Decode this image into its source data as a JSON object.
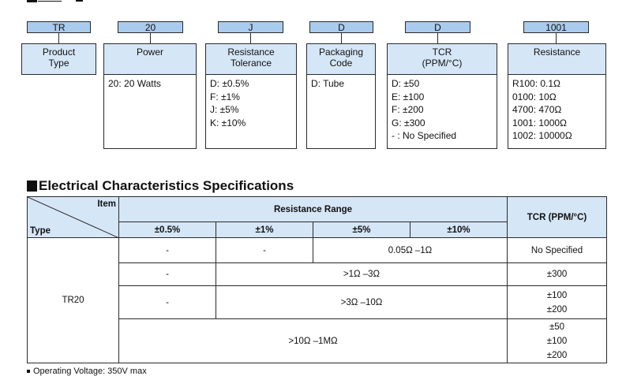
{
  "part_number": {
    "codes": [
      "TR",
      "20",
      "J",
      "D",
      "D",
      "1001"
    ],
    "fields": [
      {
        "title": [
          "Product",
          "Type"
        ],
        "options": []
      },
      {
        "title": [
          "Power"
        ],
        "options": [
          "20: 20 Watts"
        ]
      },
      {
        "title": [
          "Resistance",
          "Tolerance"
        ],
        "options": [
          "D: ±0.5%",
          "F: ±1%",
          "J: ±5%",
          "K: ±10%"
        ]
      },
      {
        "title": [
          "Packaging",
          "Code"
        ],
        "options": [
          "D: Tube"
        ]
      },
      {
        "title": [
          "TCR",
          "(PPM/°C)"
        ],
        "options": [
          "D: ±50",
          "E: ±100",
          "F: ±200",
          "G: ±300",
          "- : No Specified"
        ]
      },
      {
        "title": [
          "Resistance"
        ],
        "options": [
          "R100: 0.1Ω",
          "0100: 10Ω",
          "4700: 470Ω",
          "1001: 1000Ω",
          "1002: 10000Ω"
        ]
      }
    ]
  },
  "electrical": {
    "title": "Electrical Characteristics Specifications",
    "corner_item": "Item",
    "corner_type": "Type",
    "range_header": "Resistance Range",
    "tcr_header": "TCR (PPM/°C)",
    "tolerances": [
      "±0.5%",
      "±1%",
      "±5%",
      "±10%"
    ],
    "type_name": "TR20",
    "rows": [
      {
        "c1": "-",
        "c2": "-",
        "range": "0.05Ω –1Ω",
        "tcr": [
          "No Specified"
        ]
      },
      {
        "c1": "-",
        "range": ">1Ω –3Ω",
        "tcr": [
          "±300"
        ]
      },
      {
        "c1": "-",
        "range": ">3Ω –10Ω",
        "tcr": [
          "±100",
          "±200"
        ]
      },
      {
        "range": ">10Ω –1MΩ",
        "tcr": [
          "±50",
          "±100",
          "±200"
        ]
      }
    ]
  },
  "footnote": "Operating Voltage: 350V max"
}
